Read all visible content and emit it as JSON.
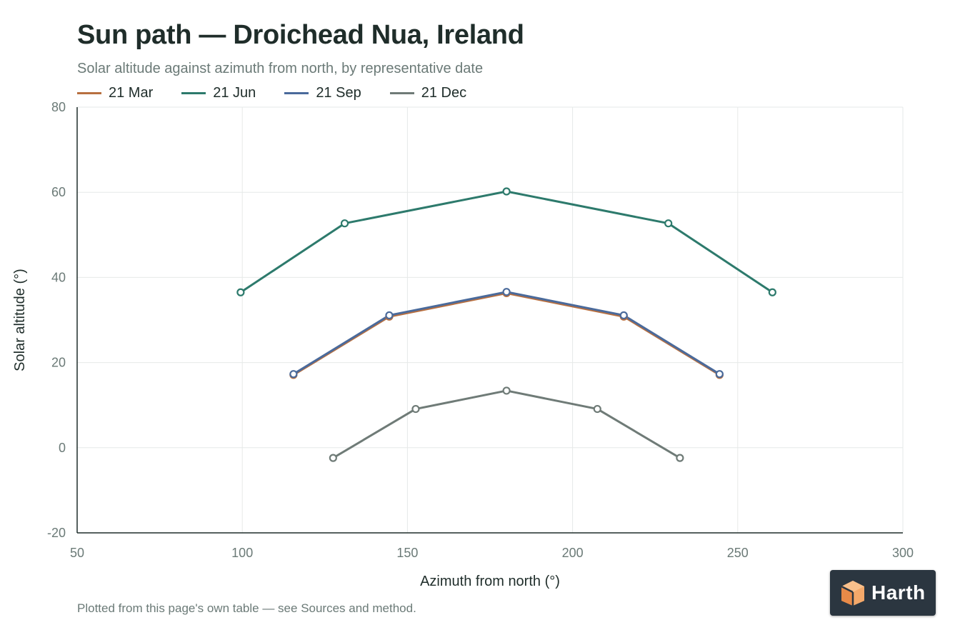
{
  "header": {
    "title": "Sun path — Droichead Nua, Ireland",
    "subtitle": "Solar altitude against azimuth from north, by representative date"
  },
  "footnote": "Plotted from this page's own table — see Sources and method.",
  "brand": {
    "name": "Harth",
    "icon": "harth-logo-icon"
  },
  "chart_data": {
    "type": "line",
    "title": "Sun path — Droichead Nua, Ireland",
    "subtitle": "Solar altitude against azimuth from north, by representative date",
    "xlabel": "Azimuth from north (°)",
    "ylabel": "Solar altitude (°)",
    "xlim": [
      50,
      300
    ],
    "ylim": [
      -20,
      80
    ],
    "xticks": [
      50,
      100,
      150,
      200,
      250,
      300
    ],
    "yticks": [
      -20,
      0,
      20,
      40,
      60,
      80
    ],
    "grid": true,
    "legend_position": "top-left",
    "series": [
      {
        "name": "21 Mar",
        "color": "#b86f3f",
        "points": [
          [
            115.5,
            17.1
          ],
          [
            144.5,
            30.8
          ],
          [
            180,
            36.3
          ],
          [
            215.5,
            30.8
          ],
          [
            244.5,
            17.1
          ]
        ]
      },
      {
        "name": "21 Jun",
        "color": "#2d7a6c",
        "points": [
          [
            99.5,
            36.5
          ],
          [
            131,
            52.7
          ],
          [
            180,
            60.2
          ],
          [
            229,
            52.7
          ],
          [
            260.5,
            36.5
          ]
        ]
      },
      {
        "name": "21 Sep",
        "color": "#4a6a9b",
        "points": [
          [
            115.5,
            17.3
          ],
          [
            144.5,
            31.1
          ],
          [
            180,
            36.6
          ],
          [
            215.5,
            31.1
          ],
          [
            244.5,
            17.3
          ]
        ]
      },
      {
        "name": "21 Dec",
        "color": "#6f7b77",
        "points": [
          [
            127.5,
            -2.4
          ],
          [
            152.5,
            9.1
          ],
          [
            180,
            13.4
          ],
          [
            207.5,
            9.1
          ],
          [
            232.5,
            -2.4
          ]
        ]
      }
    ]
  }
}
